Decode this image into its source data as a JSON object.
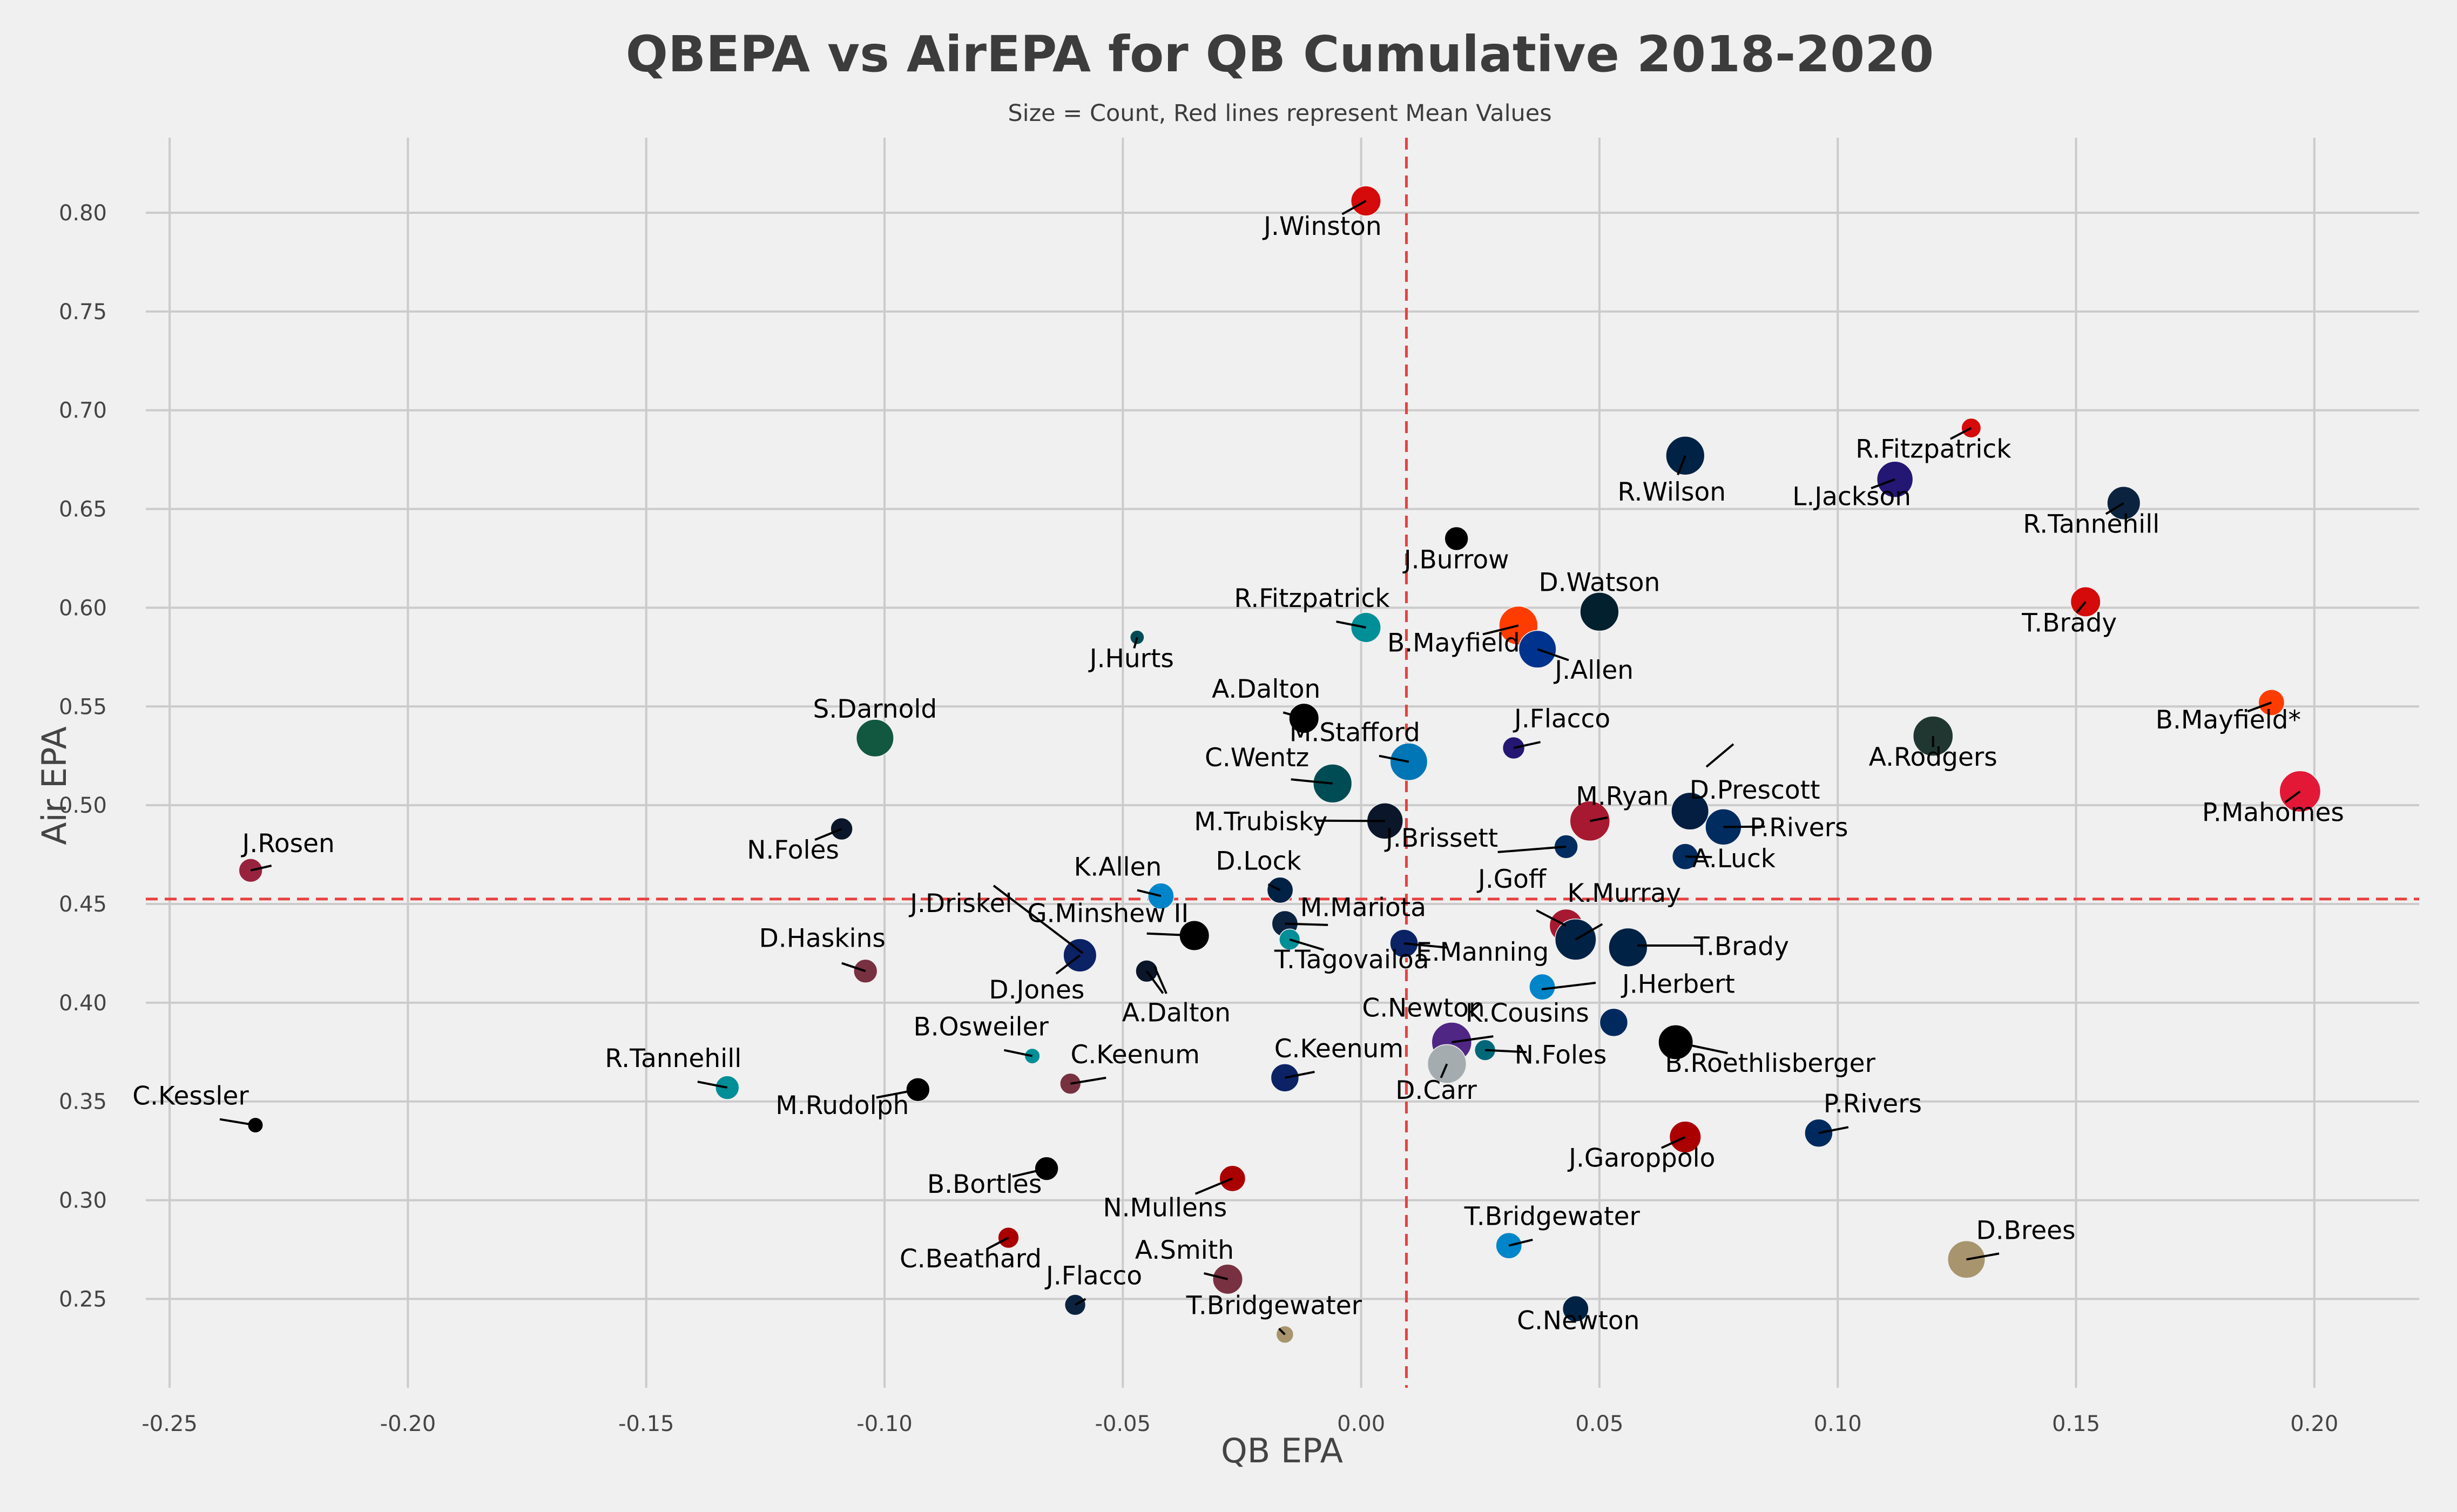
{
  "chart_data": {
    "type": "scatter",
    "title": "QBEPA vs AirEPA for QB Cumulative 2018-2020",
    "subtitle": "Size = Count, Red lines represent Mean Values",
    "xlabel": "QB EPA",
    "ylabel": "Air EPA",
    "xlim": [
      -0.255,
      0.222
    ],
    "ylim": [
      0.205,
      0.838
    ],
    "xticks": [
      "-0.25",
      "-0.20",
      "-0.15",
      "-0.10",
      "-0.05",
      "0.00",
      "0.05",
      "0.10",
      "0.15",
      "0.20"
    ],
    "yticks": [
      "0.25",
      "0.30",
      "0.35",
      "0.40",
      "0.45",
      "0.50",
      "0.55",
      "0.60",
      "0.65",
      "0.70",
      "0.75",
      "0.80"
    ],
    "grid": true,
    "mean_lines": {
      "x": 0.0095,
      "y": 0.4525,
      "color": "#e8403f"
    },
    "points": [
      {
        "name": "J.Winston",
        "x": 0.001,
        "y": 0.806,
        "count": 30,
        "color": "#d50a0a"
      },
      {
        "name": "R.Wilson",
        "x": 0.068,
        "y": 0.677,
        "count": 60,
        "color": "#002244"
      },
      {
        "name": "R.Fitzpatrick",
        "x": 0.128,
        "y": 0.691,
        "count": 8,
        "color": "#d50a0a"
      },
      {
        "name": "L.Jackson",
        "x": 0.112,
        "y": 0.665,
        "count": 50,
        "color": "#241773"
      },
      {
        "name": "R.Tannehill",
        "x": 0.16,
        "y": 0.653,
        "count": 40,
        "color": "#0c2340"
      },
      {
        "name": "J.Burrow",
        "x": 0.02,
        "y": 0.635,
        "count": 15,
        "color": "#000000"
      },
      {
        "name": "T.Brady",
        "x": 0.152,
        "y": 0.603,
        "count": 30,
        "color": "#d50a0a"
      },
      {
        "name": "D.Watson",
        "x": 0.05,
        "y": 0.598,
        "count": 60,
        "color": "#03202f"
      },
      {
        "name": "R.Fitzpatrick",
        "x": 0.001,
        "y": 0.59,
        "count": 30,
        "color": "#008e97"
      },
      {
        "name": "B.Mayfield",
        "x": 0.033,
        "y": 0.591,
        "count": 60,
        "color": "#ff3c00"
      },
      {
        "name": "J.Allen",
        "x": 0.037,
        "y": 0.579,
        "count": 55,
        "color": "#00338d"
      },
      {
        "name": "J.Hurts",
        "x": -0.047,
        "y": 0.585,
        "count": 2,
        "color": "#004c54"
      },
      {
        "name": "B.Mayfield*",
        "x": 0.191,
        "y": 0.552,
        "count": 20,
        "color": "#ff3c00"
      },
      {
        "name": "A.Dalton",
        "x": -0.012,
        "y": 0.544,
        "count": 30,
        "color": "#000000"
      },
      {
        "name": "A.Rodgers",
        "x": 0.12,
        "y": 0.535,
        "count": 65,
        "color": "#203731"
      },
      {
        "name": "S.Darnold",
        "x": -0.102,
        "y": 0.534,
        "count": 55,
        "color": "#125740"
      },
      {
        "name": "J.Flacco",
        "x": 0.032,
        "y": 0.529,
        "count": 12,
        "color": "#241773"
      },
      {
        "name": "M.Stafford",
        "x": 0.01,
        "y": 0.522,
        "count": 55,
        "color": "#0076b6"
      },
      {
        "name": "C.Wentz",
        "x": -0.006,
        "y": 0.511,
        "count": 60,
        "color": "#004c54"
      },
      {
        "name": "P.Mahomes",
        "x": 0.197,
        "y": 0.507,
        "count": 70,
        "color": "#e31837"
      },
      {
        "name": "D.Prescott",
        "x": 0.069,
        "y": 0.497,
        "count": 55,
        "color": "#041e42"
      },
      {
        "name": "M.Ryan",
        "x": 0.048,
        "y": 0.492,
        "count": 65,
        "color": "#a71930"
      },
      {
        "name": "M.Trubisky",
        "x": 0.005,
        "y": 0.492,
        "count": 50,
        "color": "#0b162a"
      },
      {
        "name": "N.Foles",
        "x": -0.109,
        "y": 0.488,
        "count": 12,
        "color": "#0b162a"
      },
      {
        "name": "P.Rivers",
        "x": 0.076,
        "y": 0.489,
        "count": 50,
        "color": "#002c5f"
      },
      {
        "name": "J.Brissett",
        "x": 0.043,
        "y": 0.479,
        "count": 15,
        "color": "#002c5f"
      },
      {
        "name": "A.Luck",
        "x": 0.068,
        "y": 0.474,
        "count": 20,
        "color": "#002c5f"
      },
      {
        "name": "J.Rosen",
        "x": -0.233,
        "y": 0.467,
        "count": 15,
        "color": "#97233f"
      },
      {
        "name": "D.Lock",
        "x": -0.017,
        "y": 0.457,
        "count": 20,
        "color": "#002244"
      },
      {
        "name": "K.Allen",
        "x": -0.042,
        "y": 0.454,
        "count": 20,
        "color": "#0085ca"
      },
      {
        "name": "J.Goff",
        "x": 0.043,
        "y": 0.439,
        "count": 40,
        "color": "#a71930"
      },
      {
        "name": "K.Murray",
        "x": 0.045,
        "y": 0.432,
        "count": 70,
        "color": "#002244"
      },
      {
        "name": "M.Mariota",
        "x": -0.016,
        "y": 0.44,
        "count": 20,
        "color": "#0c2340"
      },
      {
        "name": "G.Minshew II",
        "x": -0.035,
        "y": 0.434,
        "count": 30,
        "color": "#000000"
      },
      {
        "name": "T.Tagovailoa",
        "x": -0.015,
        "y": 0.432,
        "count": 10,
        "color": "#008e97"
      },
      {
        "name": "E.Manning",
        "x": 0.009,
        "y": 0.43,
        "count": 25,
        "color": "#0b2265"
      },
      {
        "name": "T.Brady",
        "x": 0.056,
        "y": 0.428,
        "count": 60,
        "color": "#002244"
      },
      {
        "name": "J.Driskel",
        "x": -0.059,
        "y": 0.424,
        "count": 40,
        "color": "#0b2265"
      },
      {
        "name": "D.Jones",
        "x": -0.059,
        "y": 0.424,
        "count": 40,
        "color": "#0b2265"
      },
      {
        "name": "D.Haskins",
        "x": -0.104,
        "y": 0.416,
        "count": 15,
        "color": "#773141"
      },
      {
        "name": "A.Dalton",
        "x": -0.045,
        "y": 0.416,
        "count": 12,
        "color": "#0b162a"
      },
      {
        "name": "C.Newton",
        "x": 0.038,
        "y": 0.408,
        "count": 20,
        "color": "#0085ca"
      },
      {
        "name": "J.Herbert",
        "x": 0.053,
        "y": 0.39,
        "count": 25,
        "color": "#002a5e"
      },
      {
        "name": "K.Cousins",
        "x": 0.019,
        "y": 0.38,
        "count": 65,
        "color": "#4f2683"
      },
      {
        "name": "B.Roethlisberger",
        "x": 0.066,
        "y": 0.38,
        "count": 45,
        "color": "#000000"
      },
      {
        "name": "D.Carr",
        "x": 0.018,
        "y": 0.369,
        "count": 60,
        "color": "#a5acaf"
      },
      {
        "name": "N.Foles",
        "x": 0.026,
        "y": 0.376,
        "count": 10,
        "color": "#006778"
      },
      {
        "name": "B.Osweiler",
        "x": -0.069,
        "y": 0.373,
        "count": 3,
        "color": "#008e97"
      },
      {
        "name": "C.Keenum",
        "x": -0.061,
        "y": 0.359,
        "count": 10,
        "color": "#773141"
      },
      {
        "name": "C.Keenum",
        "x": -0.016,
        "y": 0.362,
        "count": 25,
        "color": "#0b2265"
      },
      {
        "name": "R.Tannehill",
        "x": -0.133,
        "y": 0.357,
        "count": 15,
        "color": "#008e97"
      },
      {
        "name": "M.Rudolph",
        "x": -0.093,
        "y": 0.356,
        "count": 15,
        "color": "#000000"
      },
      {
        "name": "C.Kessler",
        "x": -0.232,
        "y": 0.338,
        "count": 3,
        "color": "#000000"
      },
      {
        "name": "P.Rivers",
        "x": 0.096,
        "y": 0.334,
        "count": 25,
        "color": "#002a5e"
      },
      {
        "name": "J.Garoppolo",
        "x": 0.068,
        "y": 0.332,
        "count": 35,
        "color": "#aa0000"
      },
      {
        "name": "B.Bortles",
        "x": -0.066,
        "y": 0.316,
        "count": 15,
        "color": "#000000"
      },
      {
        "name": "N.Mullens",
        "x": -0.027,
        "y": 0.311,
        "count": 20,
        "color": "#aa0000"
      },
      {
        "name": "C.Beathard",
        "x": -0.074,
        "y": 0.281,
        "count": 10,
        "color": "#aa0000"
      },
      {
        "name": "T.Bridgewater",
        "x": 0.031,
        "y": 0.277,
        "count": 20,
        "color": "#0085ca"
      },
      {
        "name": "D.Brees",
        "x": 0.127,
        "y": 0.27,
        "count": 55,
        "color": "#a8956d"
      },
      {
        "name": "A.Smith",
        "x": -0.028,
        "y": 0.26,
        "count": 30,
        "color": "#773141"
      },
      {
        "name": "J.Flacco",
        "x": -0.06,
        "y": 0.247,
        "count": 10,
        "color": "#0c2340"
      },
      {
        "name": "C.Newton",
        "x": 0.045,
        "y": 0.245,
        "count": 20,
        "color": "#002244"
      },
      {
        "name": "T.Bridgewater",
        "x": -0.016,
        "y": 0.232,
        "count": 5,
        "color": "#a8956d"
      }
    ]
  }
}
